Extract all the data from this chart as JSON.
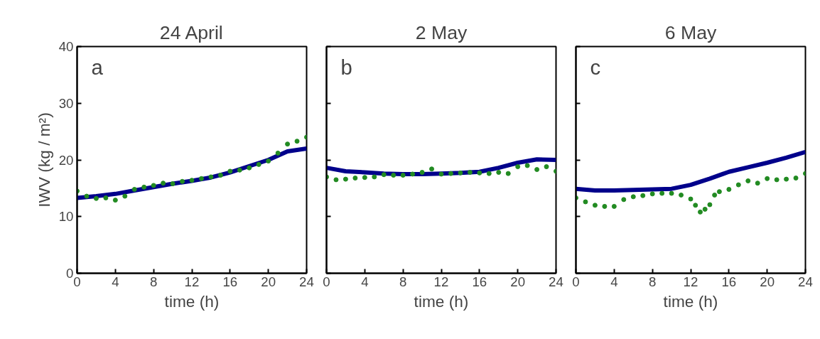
{
  "chart_data": [
    {
      "type": "line",
      "title": "24 April",
      "xlabel": "time (h)",
      "ylabel": "IWV (kg / m²)",
      "annotations": [
        "a"
      ],
      "xlim": [
        0,
        24
      ],
      "ylim": [
        0,
        40
      ],
      "xticks": [
        0,
        4,
        8,
        12,
        16,
        20,
        24
      ],
      "yticks": [
        0,
        10,
        20,
        30,
        40
      ],
      "grid": false,
      "series": [
        {
          "color": "#00008b",
          "x": [
            0,
            2,
            4,
            6,
            8,
            10,
            12,
            14,
            16,
            18,
            20,
            22,
            24
          ],
          "values": [
            13.3,
            13.6,
            14.0,
            14.6,
            15.2,
            15.8,
            16.3,
            16.9,
            17.8,
            18.9,
            20.0,
            21.5,
            22.0
          ]
        },
        {
          "type": "scatter",
          "marker": "circle",
          "color": "#228b22",
          "x": [
            0,
            1,
            2,
            3,
            4,
            5,
            6,
            7,
            8,
            9,
            10,
            11,
            12,
            13,
            14,
            15,
            16,
            17,
            18,
            19,
            20,
            21,
            22,
            23,
            24
          ],
          "values": [
            14.5,
            13.6,
            13.2,
            13.3,
            12.9,
            13.6,
            14.8,
            15.2,
            15.5,
            15.9,
            15.8,
            16.2,
            16.4,
            16.7,
            17.0,
            17.3,
            18.0,
            18.2,
            18.6,
            19.2,
            19.8,
            21.2,
            22.8,
            23.3,
            24.0
          ]
        }
      ]
    },
    {
      "type": "line",
      "title": "2 May",
      "xlabel": "time (h)",
      "annotations": [
        "b"
      ],
      "xlim": [
        0,
        24
      ],
      "ylim": [
        0,
        40
      ],
      "xticks": [
        0,
        4,
        8,
        12,
        16,
        20,
        24
      ],
      "yticks": [
        0,
        10,
        20,
        30,
        40
      ],
      "tick_labels": "x",
      "grid": false,
      "series": [
        {
          "color": "#00008b",
          "x": [
            0,
            2,
            4,
            6,
            8,
            10,
            12,
            14,
            16,
            18,
            20,
            22,
            24
          ],
          "values": [
            18.6,
            18.0,
            17.8,
            17.6,
            17.5,
            17.5,
            17.6,
            17.7,
            17.9,
            18.6,
            19.5,
            20.1,
            20.0
          ]
        },
        {
          "type": "scatter",
          "marker": "circle",
          "color": "#228b22",
          "x": [
            0,
            1,
            2,
            3,
            4,
            5,
            6,
            7,
            8,
            9,
            10,
            11,
            12,
            13,
            14,
            15,
            16,
            17,
            18,
            19,
            20,
            21,
            22,
            23,
            24
          ],
          "values": [
            17.0,
            16.5,
            16.6,
            16.8,
            16.9,
            17.0,
            17.4,
            17.3,
            17.3,
            17.5,
            17.8,
            18.4,
            17.5,
            17.6,
            17.7,
            17.8,
            17.7,
            17.6,
            17.8,
            17.6,
            18.8,
            19.0,
            18.3,
            18.8,
            18.0
          ]
        }
      ]
    },
    {
      "type": "line",
      "title": "6 May",
      "xlabel": "time (h)",
      "annotations": [
        "c"
      ],
      "xlim": [
        0,
        24
      ],
      "ylim": [
        0,
        40
      ],
      "xticks": [
        0,
        4,
        8,
        12,
        16,
        20,
        24
      ],
      "yticks": [
        0,
        10,
        20,
        30,
        40
      ],
      "tick_labels": "x",
      "grid": false,
      "series": [
        {
          "color": "#00008b",
          "x": [
            0,
            2,
            4,
            6,
            8,
            10,
            12,
            14,
            16,
            18,
            20,
            22,
            24
          ],
          "values": [
            14.9,
            14.6,
            14.6,
            14.7,
            14.8,
            14.9,
            15.6,
            16.7,
            17.9,
            18.7,
            19.5,
            20.4,
            21.4
          ]
        },
        {
          "type": "scatter",
          "marker": "circle",
          "color": "#228b22",
          "x": [
            0,
            1,
            2,
            3,
            4,
            5,
            6,
            7,
            8,
            9,
            10,
            11,
            12,
            12.5,
            13,
            13.5,
            14,
            14.5,
            15,
            16,
            17,
            18,
            19,
            20,
            21,
            22,
            23,
            24
          ],
          "values": [
            13.3,
            12.6,
            12.0,
            11.8,
            11.8,
            13.0,
            13.5,
            13.7,
            14.0,
            14.1,
            14.1,
            13.8,
            13.1,
            12.0,
            10.8,
            11.3,
            12.1,
            13.8,
            14.4,
            14.8,
            15.6,
            16.3,
            15.9,
            16.7,
            16.5,
            16.6,
            16.8,
            17.6
          ]
        }
      ]
    }
  ]
}
